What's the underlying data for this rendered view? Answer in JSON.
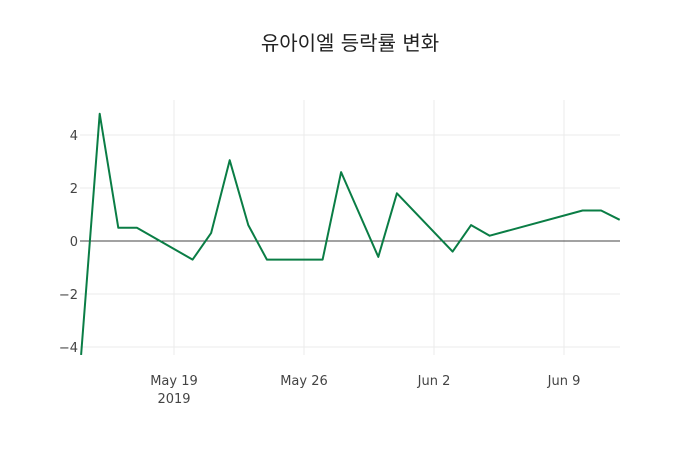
{
  "chart_data": {
    "type": "line",
    "title": "유아이엘 등락률 변화",
    "xlabel": "",
    "ylabel": "",
    "series": [
      {
        "name": "등락률",
        "color": "#0a7d45",
        "x": [
          "2019-05-14",
          "2019-05-15",
          "2019-05-16",
          "2019-05-17",
          "2019-05-20",
          "2019-05-21",
          "2019-05-22",
          "2019-05-23",
          "2019-05-24",
          "2019-05-27",
          "2019-05-28",
          "2019-05-30",
          "2019-05-31",
          "2019-06-03",
          "2019-06-04",
          "2019-06-05",
          "2019-06-10",
          "2019-06-11",
          "2019-06-12"
        ],
        "values": [
          -4.3,
          4.8,
          0.5,
          0.5,
          -0.7,
          0.3,
          3.05,
          0.6,
          -0.7,
          -0.7,
          2.6,
          -0.6,
          1.8,
          -0.4,
          0.6,
          0.2,
          1.15,
          1.15,
          0.8
        ]
      }
    ],
    "x_ticks": [
      {
        "label": "May 19",
        "sublabel": "2019",
        "date": "2019-05-19"
      },
      {
        "label": "May 26",
        "sublabel": "",
        "date": "2019-05-26"
      },
      {
        "label": "Jun 2",
        "sublabel": "",
        "date": "2019-06-02"
      },
      {
        "label": "Jun 9",
        "sublabel": "",
        "date": "2019-06-09"
      }
    ],
    "y_ticks": [
      4,
      2,
      0,
      -2,
      -4
    ],
    "y_tick_labels": [
      "4",
      "2",
      "0",
      "−2",
      "−4"
    ],
    "ylim": [
      -4.3,
      5.3
    ],
    "xlim": [
      "2019-05-14",
      "2019-06-12"
    ],
    "grid": true,
    "legend": "none",
    "zero_line": true
  }
}
